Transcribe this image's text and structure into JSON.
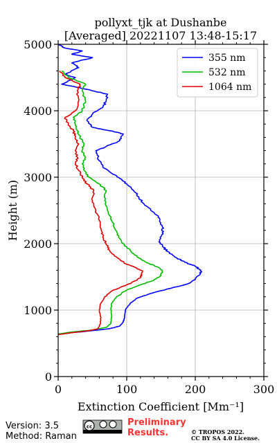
{
  "chart_data": {
    "type": "line",
    "title_line1": "pollyxt_tjk at Dushanbe",
    "title_line2": "[Averaged] 20221107 13:48-15:17",
    "xlabel": "Extinction Coefficient [Mm⁻¹]",
    "ylabel": "Height (m)",
    "xlim": [
      0,
      300
    ],
    "ylim": [
      0,
      5000
    ],
    "xticks": [
      "0",
      "100",
      "200",
      "300"
    ],
    "yticks": [
      "0",
      "1000",
      "2000",
      "3000",
      "4000",
      "5000"
    ],
    "grid": true,
    "legend_position": "top-right",
    "series": [
      {
        "name": "355 nm",
        "color": "#0000ff",
        "points": [
          [
            0,
            640
          ],
          [
            40,
            680
          ],
          [
            75,
            720
          ],
          [
            90,
            760
          ],
          [
            95,
            820
          ],
          [
            97,
            900
          ],
          [
            98,
            1000
          ],
          [
            105,
            1100
          ],
          [
            115,
            1180
          ],
          [
            135,
            1250
          ],
          [
            165,
            1330
          ],
          [
            190,
            1400
          ],
          [
            200,
            1470
          ],
          [
            207,
            1540
          ],
          [
            208,
            1600
          ],
          [
            200,
            1660
          ],
          [
            185,
            1720
          ],
          [
            170,
            1800
          ],
          [
            160,
            1880
          ],
          [
            152,
            1960
          ],
          [
            148,
            2040
          ],
          [
            153,
            2150
          ],
          [
            152,
            2250
          ],
          [
            148,
            2380
          ],
          [
            138,
            2480
          ],
          [
            125,
            2600
          ],
          [
            118,
            2700
          ],
          [
            110,
            2800
          ],
          [
            100,
            2900
          ],
          [
            90,
            2980
          ],
          [
            78,
            3060
          ],
          [
            65,
            3150
          ],
          [
            58,
            3300
          ],
          [
            55,
            3400
          ],
          [
            70,
            3460
          ],
          [
            90,
            3550
          ],
          [
            95,
            3650
          ],
          [
            75,
            3700
          ],
          [
            50,
            3750
          ],
          [
            42,
            3850
          ],
          [
            50,
            3950
          ],
          [
            65,
            4050
          ],
          [
            70,
            4150
          ],
          [
            72,
            4250
          ],
          [
            50,
            4300
          ],
          [
            30,
            4350
          ],
          [
            5,
            4400
          ],
          [
            25,
            4500
          ],
          [
            10,
            4550
          ],
          [
            30,
            4650
          ],
          [
            20,
            4720
          ],
          [
            50,
            4800
          ],
          [
            20,
            4850
          ],
          [
            35,
            4900
          ],
          [
            8,
            4950
          ],
          [
            0,
            5000
          ]
        ]
      },
      {
        "name": "532 nm",
        "color": "#00bb00",
        "points": [
          [
            0,
            640
          ],
          [
            20,
            670
          ],
          [
            50,
            700
          ],
          [
            70,
            740
          ],
          [
            77,
            800
          ],
          [
            78,
            900
          ],
          [
            77,
            1000
          ],
          [
            78,
            1100
          ],
          [
            85,
            1200
          ],
          [
            100,
            1300
          ],
          [
            120,
            1380
          ],
          [
            140,
            1450
          ],
          [
            150,
            1520
          ],
          [
            152,
            1590
          ],
          [
            145,
            1650
          ],
          [
            130,
            1710
          ],
          [
            115,
            1800
          ],
          [
            105,
            1900
          ],
          [
            95,
            2000
          ],
          [
            88,
            2100
          ],
          [
            84,
            2200
          ],
          [
            78,
            2350
          ],
          [
            72,
            2500
          ],
          [
            68,
            2650
          ],
          [
            70,
            2800
          ],
          [
            60,
            2900
          ],
          [
            45,
            3000
          ],
          [
            38,
            3100
          ],
          [
            35,
            3200
          ],
          [
            40,
            3300
          ],
          [
            35,
            3400
          ],
          [
            38,
            3500
          ],
          [
            32,
            3600
          ],
          [
            28,
            3700
          ],
          [
            25,
            3800
          ],
          [
            22,
            3900
          ],
          [
            35,
            4000
          ],
          [
            40,
            4150
          ],
          [
            35,
            4300
          ],
          [
            40,
            4400
          ],
          [
            15,
            4500
          ],
          [
            5,
            4600
          ]
        ]
      },
      {
        "name": "1064 nm",
        "color": "#dd0000",
        "points": [
          [
            0,
            630
          ],
          [
            20,
            660
          ],
          [
            45,
            690
          ],
          [
            58,
            720
          ],
          [
            62,
            800
          ],
          [
            62,
            900
          ],
          [
            60,
            1000
          ],
          [
            62,
            1100
          ],
          [
            68,
            1200
          ],
          [
            80,
            1300
          ],
          [
            100,
            1380
          ],
          [
            115,
            1450
          ],
          [
            122,
            1520
          ],
          [
            123,
            1580
          ],
          [
            115,
            1630
          ],
          [
            100,
            1690
          ],
          [
            85,
            1800
          ],
          [
            75,
            1900
          ],
          [
            70,
            2000
          ],
          [
            65,
            2100
          ],
          [
            63,
            2200
          ],
          [
            60,
            2350
          ],
          [
            55,
            2500
          ],
          [
            50,
            2650
          ],
          [
            52,
            2800
          ],
          [
            42,
            2900
          ],
          [
            35,
            3000
          ],
          [
            30,
            3100
          ],
          [
            25,
            3200
          ],
          [
            28,
            3300
          ],
          [
            25,
            3400
          ],
          [
            30,
            3500
          ],
          [
            25,
            3600
          ],
          [
            22,
            3700
          ],
          [
            15,
            3800
          ],
          [
            10,
            3900
          ],
          [
            25,
            4000
          ],
          [
            30,
            4150
          ],
          [
            28,
            4300
          ],
          [
            32,
            4400
          ],
          [
            10,
            4500
          ],
          [
            2,
            4600
          ]
        ]
      }
    ]
  },
  "footer": {
    "version": "Version: 3.5",
    "method": "Method: Raman",
    "preliminary_line1": "Preliminary",
    "preliminary_line2": "Results.",
    "copyright_line1": "© TROPOS 2022.",
    "copyright_line2": "CC BY SA 4.0 License."
  }
}
